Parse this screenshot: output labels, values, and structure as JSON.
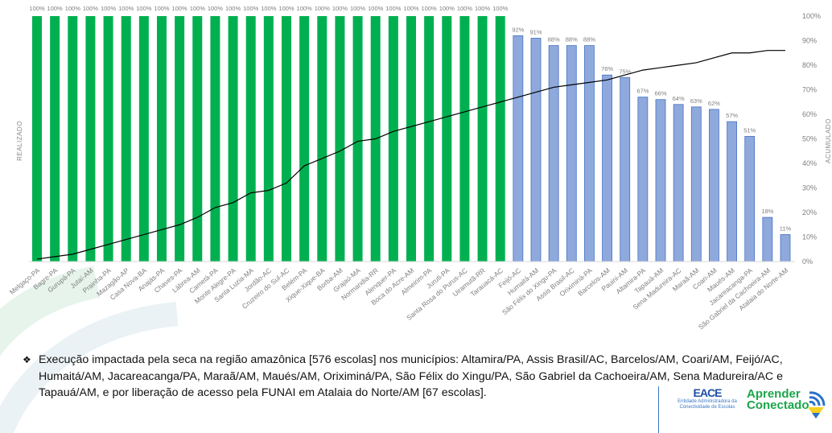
{
  "chart_data": {
    "type": "bar",
    "left_axis_label": "REALIZADO",
    "right_axis_label": "ACUMULADO",
    "right_ticks": [
      "0%",
      "10%",
      "20%",
      "30%",
      "40%",
      "50%",
      "60%",
      "70%",
      "80%",
      "90%",
      "100%"
    ],
    "ylim": [
      0,
      100
    ],
    "grid": false,
    "categories": [
      "Melgaço-PA",
      "Bagre-PA",
      "Gurupá-PA",
      "Jutaí-AM",
      "Prainha-PA",
      "Mazagão-AP",
      "Casa Nova-BA",
      "Anajás-PA",
      "Chaves-PA",
      "Lábrea-AM",
      "Cametá-PA",
      "Monte Alegre-PA",
      "Santa Luzia-MA",
      "Jordão-AC",
      "Cruzeiro do Sul-AC",
      "Belém-PA",
      "Xique-Xique-BA",
      "Borba-AM",
      "Grajaú-MA",
      "Normandia-RR",
      "Alenquer-PA",
      "Boca do Acre-AM",
      "Almeirim-PA",
      "Juruti-PA",
      "Santa Rosa do Purus-AC",
      "Uiramutã-RR",
      "Tarauacá-AC",
      "Feijó-AC",
      "Humaitá-AM",
      "São Félix do Xingu-PA",
      "Assis Brasil-AC",
      "Oriximiná-PA",
      "Barcelos-AM",
      "Pauini-AM",
      "Altamira-PA",
      "Tapauá-AM",
      "Sena Madureira-AC",
      "Maraã-AM",
      "Coari-AM",
      "Maués-AM",
      "Jacareacanga-PA",
      "São Gabriel da Cachoeira-AM",
      "Atalaia do Norte-AM"
    ],
    "series": [
      {
        "type": "bar",
        "values": [
          100,
          100,
          100,
          100,
          100,
          100,
          100,
          100,
          100,
          100,
          100,
          100,
          100,
          100,
          100,
          100,
          100,
          100,
          100,
          100,
          100,
          100,
          100,
          100,
          100,
          100,
          100,
          92,
          91,
          88,
          88,
          88,
          76,
          75,
          67,
          66,
          64,
          63,
          62,
          57,
          51,
          18,
          11
        ],
        "labels": [
          "100%",
          "100%",
          "100%",
          "100%",
          "100%",
          "100%",
          "100%",
          "100%",
          "100%",
          "100%",
          "100%",
          "100%",
          "100%",
          "100%",
          "100%",
          "100%",
          "100%",
          "100%",
          "100%",
          "100%",
          "100%",
          "100%",
          "100%",
          "100%",
          "100%",
          "100%",
          "100%",
          "92%",
          "91%",
          "88%",
          "88%",
          "88%",
          "76%",
          "75%",
          "67%",
          "66%",
          "64%",
          "63%",
          "62%",
          "57%",
          "51%",
          "18%",
          "11%"
        ]
      },
      {
        "type": "line",
        "axis": "right",
        "values": [
          1,
          2,
          3,
          5,
          7,
          9,
          11,
          13,
          15,
          18,
          22,
          24,
          28,
          29,
          32,
          39,
          42,
          45,
          49,
          50,
          53,
          55,
          57,
          59,
          61,
          63,
          65,
          67,
          69,
          71,
          72,
          73,
          74,
          76,
          78,
          79,
          80,
          81,
          83,
          85,
          85,
          86,
          86
        ]
      }
    ],
    "colors": {
      "complete": "#00b050",
      "partial": "#8fa9dc",
      "partial_border": "#4472c4",
      "line": "#000000"
    }
  },
  "note": {
    "bullet": "❖",
    "text": "Execução impactada pela seca na região amazônica [576 escolas] nos municípios: Altamira/PA, Assis Brasil/AC, Barcelos/AM, Coari/AM, Feijó/AC, Humaitá/AM, Jacareacanga/PA, Maraã/AM, Maués/AM, Oriximiná/PA, São Félix do Xingu/PA, São Gabriel da Cachoeira/AM, Sena Madureira/AC e Tapauá/AM, e por liberação de acesso pela FUNAI em Atalaia do Norte/AM [67 escolas]."
  },
  "logos": {
    "eace": "EACE",
    "eace_sub": "Entidade Administradora da Conectividade de Escolas",
    "aprender_1": "Aprender",
    "aprender_2": "Conectado"
  }
}
